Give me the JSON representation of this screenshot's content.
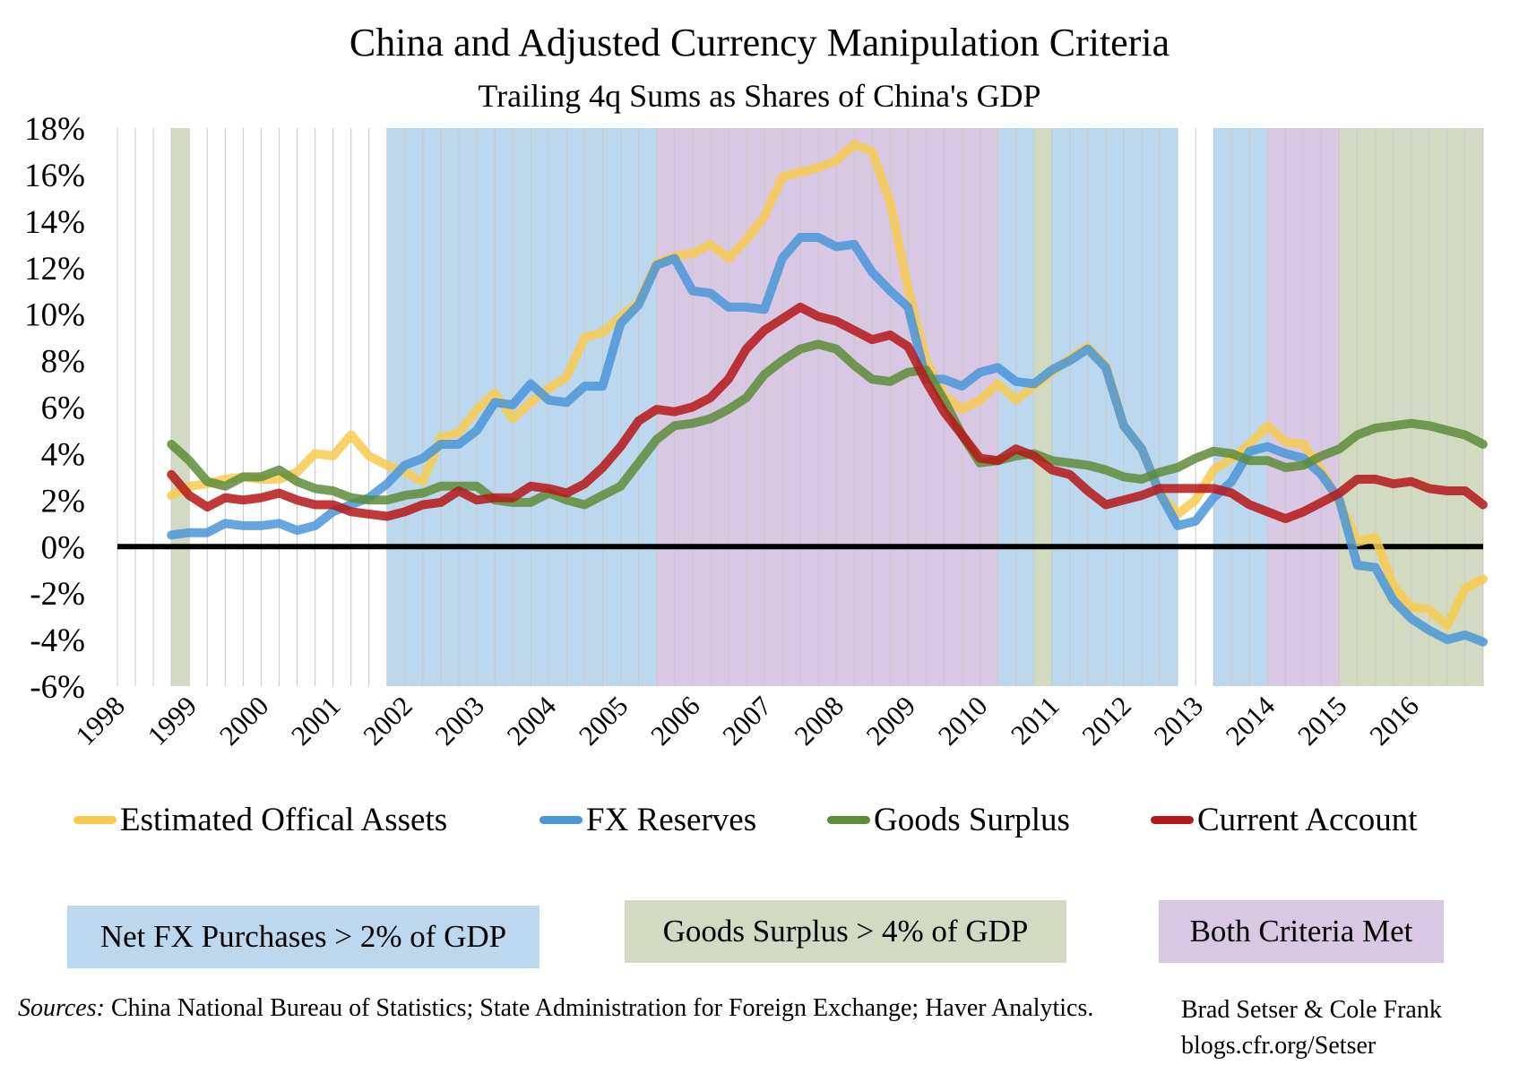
{
  "chart_data": {
    "type": "line",
    "title": "China and Adjusted Currency Manipulation Criteria",
    "subtitle": "Trailing 4q Sums as Shares of China's GDP",
    "xlabel": "",
    "ylabel": "",
    "ylim": [
      -6,
      18
    ],
    "y_ticks": [
      "18%",
      "16%",
      "14%",
      "12%",
      "10%",
      "8%",
      "6%",
      "4%",
      "2%",
      "0%",
      "-2%",
      "-4%",
      "-6%"
    ],
    "x_range": [
      1998.0,
      2017.0
    ],
    "x_tick_labels": [
      "1998",
      "1999",
      "2000",
      "2001",
      "2002",
      "2003",
      "2004",
      "2005",
      "2006",
      "2007",
      "2008",
      "2009",
      "2010",
      "2011",
      "2012",
      "2013",
      "2014",
      "2015",
      "2016"
    ],
    "grid": "vertical quarterly gridlines",
    "legend_position": "bottom",
    "x": [
      1998.75,
      1999.0,
      1999.25,
      1999.5,
      1999.75,
      2000.0,
      2000.25,
      2000.5,
      2000.75,
      2001.0,
      2001.25,
      2001.5,
      2001.75,
      2002.0,
      2002.25,
      2002.5,
      2002.75,
      2003.0,
      2003.25,
      2003.5,
      2003.75,
      2004.0,
      2004.25,
      2004.5,
      2004.75,
      2005.0,
      2005.25,
      2005.5,
      2005.75,
      2006.0,
      2006.25,
      2006.5,
      2006.75,
      2007.0,
      2007.25,
      2007.5,
      2007.75,
      2008.0,
      2008.25,
      2008.5,
      2008.75,
      2009.0,
      2009.25,
      2009.5,
      2009.75,
      2010.0,
      2010.25,
      2010.5,
      2010.75,
      2011.0,
      2011.25,
      2011.5,
      2011.75,
      2012.0,
      2012.25,
      2012.5,
      2012.75,
      2013.0,
      2013.25,
      2013.5,
      2013.75,
      2014.0,
      2014.25,
      2014.5,
      2014.75,
      2015.0,
      2015.25,
      2015.5,
      2015.75,
      2016.0,
      2016.25,
      2016.5,
      2016.75,
      2017.0
    ],
    "series": [
      {
        "name": "Estimated Offical Assets",
        "color": "#f8cb50",
        "values": [
          2.2,
          2.6,
          2.7,
          2.9,
          3.0,
          2.9,
          2.9,
          3.2,
          4.0,
          3.9,
          4.8,
          3.9,
          3.5,
          3.2,
          2.8,
          4.7,
          4.9,
          5.9,
          6.6,
          5.5,
          6.2,
          6.8,
          7.3,
          9.0,
          9.2,
          9.9,
          10.5,
          12.2,
          12.5,
          12.6,
          13.0,
          12.4,
          13.2,
          14.2,
          15.9,
          16.1,
          16.3,
          16.6,
          17.3,
          17.0,
          14.8,
          11.1,
          8.0,
          6.5,
          5.9,
          6.3,
          7.0,
          6.3,
          6.9,
          7.5,
          8.1,
          8.6,
          7.8,
          5.2,
          4.2,
          2.3,
          1.4,
          2.0,
          3.3,
          3.8,
          4.4,
          5.2,
          4.5,
          4.4,
          3.3,
          1.9,
          0.2,
          0.4,
          -1.7,
          -2.6,
          -2.7,
          -3.4,
          -1.8,
          -1.4
        ]
      },
      {
        "name": "FX Reserves",
        "color": "#4a97d8",
        "values": [
          0.5,
          0.6,
          0.6,
          1.0,
          0.9,
          0.9,
          1.0,
          0.7,
          0.9,
          1.5,
          1.8,
          2.1,
          2.7,
          3.5,
          3.8,
          4.4,
          4.4,
          5.0,
          6.2,
          6.1,
          7.0,
          6.3,
          6.2,
          6.9,
          6.9,
          9.6,
          10.4,
          12.1,
          12.4,
          11.0,
          10.9,
          10.3,
          10.3,
          10.2,
          12.4,
          13.3,
          13.3,
          12.9,
          13.0,
          11.8,
          11.0,
          10.3,
          7.2,
          7.2,
          6.9,
          7.5,
          7.7,
          7.1,
          7.0,
          7.6,
          8.0,
          8.5,
          7.7,
          5.2,
          4.2,
          2.3,
          0.9,
          1.1,
          2.1,
          2.8,
          4.1,
          4.3,
          4.0,
          3.8,
          3.1,
          2.0,
          -0.8,
          -0.9,
          -2.3,
          -3.1,
          -3.6,
          -4.0,
          -3.8,
          -4.1
        ]
      },
      {
        "name": "Goods Surplus",
        "color": "#5e8c3a",
        "values": [
          4.4,
          3.7,
          2.8,
          2.6,
          3.0,
          3.0,
          3.3,
          2.8,
          2.5,
          2.4,
          2.1,
          2.0,
          2.0,
          2.2,
          2.3,
          2.6,
          2.6,
          2.6,
          2.0,
          1.9,
          1.9,
          2.3,
          2.0,
          1.8,
          2.2,
          2.6,
          3.6,
          4.6,
          5.2,
          5.3,
          5.5,
          5.9,
          6.4,
          7.4,
          8.0,
          8.5,
          8.7,
          8.5,
          7.8,
          7.2,
          7.1,
          7.5,
          7.6,
          6.3,
          4.8,
          3.6,
          3.7,
          3.9,
          4.0,
          3.7,
          3.6,
          3.5,
          3.3,
          3.0,
          2.9,
          3.2,
          3.4,
          3.8,
          4.1,
          4.0,
          3.7,
          3.7,
          3.4,
          3.5,
          3.9,
          4.2,
          4.8,
          5.1,
          5.2,
          5.3,
          5.2,
          5.0,
          4.8,
          4.4
        ]
      },
      {
        "name": "Current Account",
        "color": "#b51818",
        "values": [
          3.1,
          2.2,
          1.7,
          2.1,
          2.0,
          2.1,
          2.3,
          2.0,
          1.8,
          1.8,
          1.5,
          1.4,
          1.3,
          1.5,
          1.8,
          1.9,
          2.4,
          2.0,
          2.1,
          2.1,
          2.6,
          2.5,
          2.3,
          2.7,
          3.4,
          4.3,
          5.4,
          5.9,
          5.8,
          6.0,
          6.4,
          7.2,
          8.5,
          9.3,
          9.8,
          10.3,
          9.9,
          9.7,
          9.3,
          8.9,
          9.1,
          8.6,
          7.1,
          5.8,
          4.8,
          3.8,
          3.7,
          4.2,
          3.9,
          3.3,
          3.1,
          2.4,
          1.8,
          2.0,
          2.2,
          2.5,
          2.5,
          2.5,
          2.5,
          2.3,
          1.8,
          1.5,
          1.2,
          1.5,
          1.9,
          2.3,
          2.9,
          2.9,
          2.7,
          2.8,
          2.5,
          2.4,
          2.4,
          1.8
        ]
      }
    ],
    "shaded_periods": [
      {
        "start": 1998.75,
        "end": 1999.0,
        "type": "goods"
      },
      {
        "start": 2001.75,
        "end": 2005.5,
        "type": "fx"
      },
      {
        "start": 2005.5,
        "end": 2010.25,
        "type": "both"
      },
      {
        "start": 2010.25,
        "end": 2010.75,
        "type": "fx"
      },
      {
        "start": 2010.75,
        "end": 2011.0,
        "type": "goods"
      },
      {
        "start": 2011.0,
        "end": 2012.75,
        "type": "fx"
      },
      {
        "start": 2013.25,
        "end": 2014.0,
        "type": "fx"
      },
      {
        "start": 2014.0,
        "end": 2015.0,
        "type": "both"
      },
      {
        "start": 2015.0,
        "end": 2017.0,
        "type": "goods"
      }
    ],
    "shade_colors": {
      "fx": "#bcd8ee",
      "goods": "#d2dbc2",
      "both": "#d8c8e4"
    }
  },
  "criteria_boxes": {
    "fx": {
      "label": "Net FX Purchases > 2% of GDP",
      "color": "#bcd8ee"
    },
    "goods": {
      "label": "Goods Surplus > 4% of GDP",
      "color": "#d2dbc2"
    },
    "both": {
      "label": "Both Criteria Met",
      "color": "#d8c8e4"
    }
  },
  "sources": {
    "label": "Sources:",
    "text": " China National Bureau of Statistics; State Administration for Foreign Exchange; Haver Analytics."
  },
  "credits": {
    "authors": "Brad Setser & Cole Frank",
    "site": "blogs.cfr.org/Setser"
  }
}
